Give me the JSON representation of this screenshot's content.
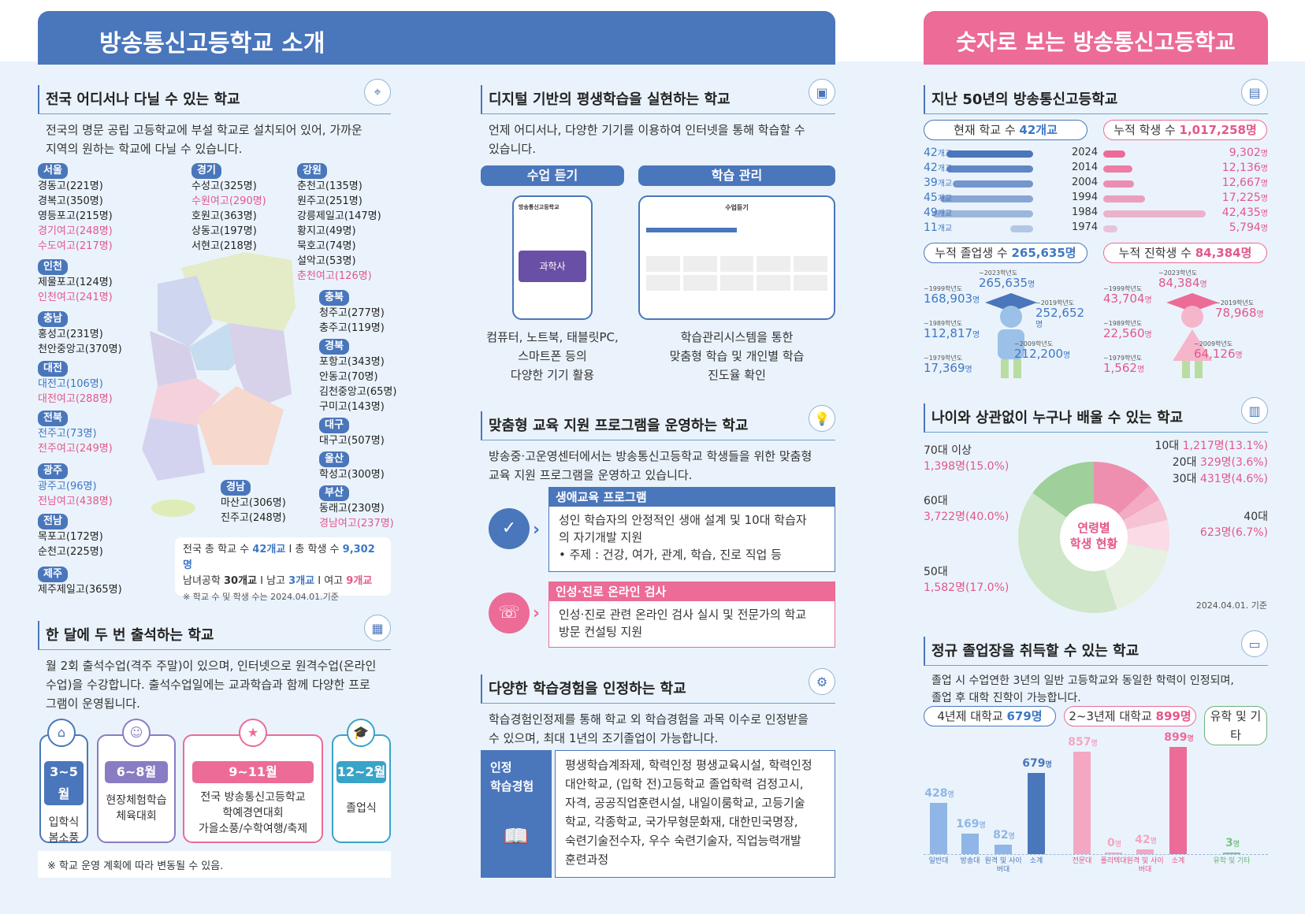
{
  "header": {
    "left_title": "방송통신고등학교 소개",
    "right_title": "숫자로 보는 방송통신고등학교"
  },
  "s1": {
    "title": "전국 어디서나 다닐 수 있는 학교",
    "desc1": "전국의 명문 공립 고등학교에 부설 학교로 설치되어 있어, 가까운",
    "desc2": "지역의 원하는 학교에 다닐 수 있습니다.",
    "regions": {
      "seoul": {
        "tag": "서울",
        "items": [
          "경동고(221명)",
          "경복고(350명)",
          "영등포고(215명)",
          "경기여고(248명)",
          "수도여고(217명)"
        ]
      },
      "incheon": {
        "tag": "인천",
        "items": [
          "제물포고(124명)",
          "인천여고(241명)"
        ]
      },
      "chungnam": {
        "tag": "충남",
        "items": [
          "홍성고(231명)",
          "천안중앙고(370명)"
        ]
      },
      "daejeon": {
        "tag": "대전",
        "items": [
          "대전고(106명)",
          "대전여고(288명)"
        ]
      },
      "jeonbuk": {
        "tag": "전북",
        "items": [
          "전주고(73명)",
          "전주여고(249명)"
        ]
      },
      "gwangju": {
        "tag": "광주",
        "items": [
          "광주고(96명)",
          "전남여고(438명)"
        ]
      },
      "jeonnam": {
        "tag": "전남",
        "items": [
          "목포고(172명)",
          "순천고(225명)"
        ]
      },
      "jeju": {
        "tag": "제주",
        "items": [
          "제주제일고(365명)"
        ]
      },
      "gyeonggi": {
        "tag": "경기",
        "items": [
          "수성고(325명)",
          "수원여고(290명)",
          "호원고(363명)",
          "상동고(197명)",
          "서현고(218명)"
        ]
      },
      "gangwon": {
        "tag": "강원",
        "items": [
          "춘천고(135명)",
          "원주고(251명)",
          "강릉제일고(147명)",
          "황지고(49명)",
          "묵호고(74명)",
          "설악고(53명)",
          "춘천여고(126명)"
        ]
      },
      "chungbuk": {
        "tag": "충북",
        "items": [
          "청주고(277명)",
          "충주고(119명)"
        ]
      },
      "gyeongbuk": {
        "tag": "경북",
        "items": [
          "포항고(343명)",
          "안동고(70명)",
          "김천중앙고(65명)",
          "구미고(143명)"
        ]
      },
      "daegu": {
        "tag": "대구",
        "items": [
          "대구고(507명)"
        ]
      },
      "ulsan": {
        "tag": "울산",
        "items": [
          "학성고(300명)"
        ]
      },
      "gyeongnam": {
        "tag": "경남",
        "items": [
          "마산고(306명)",
          "진주고(248명)"
        ]
      },
      "busan": {
        "tag": "부산",
        "items": [
          "동래고(230명)",
          "경남여고(237명)"
        ]
      }
    },
    "summary1a": "전국 총 학교 수 ",
    "summary1b": "42개교",
    "summary1c": " I 총 학생 수 ",
    "summary1d": "9,302명",
    "summary2a": "남녀공학 ",
    "summary2b": "30개교",
    "summary2c": " I 남고 ",
    "summary2d": "3개교",
    "summary2e": " I 여고 ",
    "summary2f": "9개교",
    "summary3": "※ 학교 수 및 학생 수는 2024.04.01.기준"
  },
  "s2": {
    "title": "한 달에 두 번 출석하는 학교",
    "desc1": "월 2회 출석수업(격주 주말)이 있으며, 인터넷으로 원격수업(온라인",
    "desc2": "수업)을 수강합니다. 출석수업일에는 교과학습과 함께 다양한 프로",
    "desc3": "그램이 운영됩니다.",
    "cards": [
      {
        "period": "3~5월",
        "l1": "입학식",
        "l2": "봄소풍",
        "l3": ""
      },
      {
        "period": "6~8월",
        "l1": "현장체험학습",
        "l2": "체육대회",
        "l3": ""
      },
      {
        "period": "9~11월",
        "l1": "전국 방송통신고등학교",
        "l2": "학예경연대회",
        "l3": "가을소풍/수학여행/축제"
      },
      {
        "period": "12~2월",
        "l1": "졸업식",
        "l2": "",
        "l3": ""
      }
    ],
    "note": "※ 학교 운영 계획에 따라 변동될 수 있음."
  },
  "s3": {
    "title": "디지털 기반의 평생학습을 실현하는 학교",
    "desc1": "언제 어디서나, 다양한 기기를 이용하여 인터넷을 통해 학습할 수",
    "desc2": "있습니다.",
    "btn1": "수업 듣기",
    "btn2": "학습 관리",
    "phone_title": "방송통신고등학교",
    "phone_sub": "과학사",
    "lms_title": "수업듣기",
    "cap1": [
      "컴퓨터, 노트북, 태블릿PC,",
      "스마트폰 등의",
      "다양한 기기 활용"
    ],
    "cap2": [
      "학습관리시스템을 통한",
      "맞춤형 학습 및 개인별 학습",
      "진도율 확인"
    ]
  },
  "s4": {
    "title": "맞춤형 교육 지원 프로그램을 운영하는 학교",
    "desc1": "방송중·고운영센터에서는 방송통신고등학교 학생들을 위한 맞춤형",
    "desc2": "교육 지원 프로그램을 운영하고 있습니다.",
    "p1": {
      "title": "생애교육 프로그램",
      "l1": "성인 학습자의 안정적인 생애 설계 및 10대 학습자",
      "l2": "의 자기개발 지원",
      "l3": "• 주제 : 건강, 여가, 관계, 학습, 진로 직업 등"
    },
    "p2": {
      "title": "인성·진로 온라인 검사",
      "l1": "인성·진로 관련 온라인 검사 실시 및 전문가의 학교",
      "l2": "방문 컨설팅 지원"
    }
  },
  "s5": {
    "title": "다양한 학습경험을 인정하는 학교",
    "desc1": "학습경험인정제를 통해 학교 외 학습경험을 과목 이수로 인정받을",
    "desc2": "수 있으며, 최대 1년의 조기졸업이 가능합니다.",
    "side1": "인정",
    "side2": "학습경험",
    "lines": [
      "평생학습계좌제, 학력인정 평생교육시설, 학력인정",
      "대안학교, (입학 전)고등학교 졸업학력 검정고시,",
      "자격, 공공직업훈련시설, 내일이룸학교, 고등기술",
      "학교, 각종학교, 국가무형문화재, 대한민국명장,",
      "숙련기술전수자, 우수 숙련기술자, 직업능력개발",
      "훈련과정"
    ]
  },
  "s6": {
    "title": "지난 50년의 방송통신고등학교",
    "pill1a": "현재 학교 수 ",
    "pill1b": "42개교",
    "pill2a": "누적 학생 수 ",
    "pill2b": "1,017,258명",
    "unit_school": "개교",
    "unit_person": "명",
    "rows": [
      {
        "schools": 42,
        "year": "2024",
        "students": "9,302"
      },
      {
        "schools": 42,
        "year": "2014",
        "students": "12,136"
      },
      {
        "schools": 39,
        "year": "2004",
        "students": "12,667"
      },
      {
        "schools": 45,
        "year": "1994",
        "students": "17,225"
      },
      {
        "schools": 49,
        "year": "1984",
        "students": "42,435"
      },
      {
        "schools": 11,
        "year": "1974",
        "students": "5,794"
      }
    ],
    "pill3a": "누적 졸업생 수 ",
    "pill3b": "265,635명",
    "pill4a": "누적 진학생 수 ",
    "pill4b": "84,384명",
    "grad": [
      {
        "y": "~1999학년도",
        "v": "168,903"
      },
      {
        "y": "~2023학년도",
        "v": "265,635"
      },
      {
        "y": "~2019학년도",
        "v": "252,652"
      },
      {
        "y": "~1989학년도",
        "v": "112,817"
      },
      {
        "y": "~2009학년도",
        "v": "212,200"
      },
      {
        "y": "~1979학년도",
        "v": "17,369"
      }
    ],
    "adv": [
      {
        "y": "~1999학년도",
        "v": "43,704"
      },
      {
        "y": "~2023학년도",
        "v": "84,384"
      },
      {
        "y": "~2019학년도",
        "v": "78,968"
      },
      {
        "y": "~1989학년도",
        "v": "22,560"
      },
      {
        "y": "~2009학년도",
        "v": "64,126"
      },
      {
        "y": "~1979학년도",
        "v": "1,562"
      }
    ]
  },
  "s7": {
    "title": "나이와 상관없이 누구나 배울 수 있는 학교",
    "center1": "연령별",
    "center2": "학생 현황",
    "basis": "2024.04.01. 기준",
    "labels": [
      {
        "age": "10대",
        "val": "1,217명(13.1%)"
      },
      {
        "age": "20대",
        "val": "329명(3.6%)"
      },
      {
        "age": "30대",
        "val": "431명(4.6%)"
      },
      {
        "age": "40대",
        "val": "623명(6.7%)"
      },
      {
        "age": "50대",
        "val": "1,582명(17.0%)"
      },
      {
        "age": "60대",
        "val": "3,722명(40.0%)"
      },
      {
        "age": "70대 이상",
        "val": "1,398명(15.0%)"
      }
    ]
  },
  "s8": {
    "title": "정규 졸업장을 취득할 수 있는 학교",
    "desc1": "졸업 시 수업연한 3년의 일반 고등학교와 동일한 학력이 인정되며,",
    "desc2": "졸업 후 대학 진학이 가능합니다.",
    "pill1a": "4년제 대학교 ",
    "pill1b": "679명",
    "pill2a": "2~3년제 대학교 ",
    "pill2b": "899명",
    "pill3": "유학 및 기타",
    "bars": [
      {
        "label": "일반대",
        "v": "428",
        "n": 428
      },
      {
        "label": "방송대",
        "v": "169",
        "n": 169
      },
      {
        "label": "원격 및 사이버대",
        "v": "82",
        "n": 82
      },
      {
        "label": "소계",
        "v": "679",
        "n": 679
      },
      {
        "label": "전문대",
        "v": "857",
        "n": 857
      },
      {
        "label": "폴리텍대",
        "v": "0",
        "n": 0
      },
      {
        "label": "원격 및 사이버대",
        "v": "42",
        "n": 42
      },
      {
        "label": "소계",
        "v": "899",
        "n": 899
      },
      {
        "label": "유학 및 기타",
        "v": "3",
        "n": 3
      }
    ]
  },
  "colors": {
    "blue": "#4a76bb",
    "pink": "#ec6b97",
    "green": "#6bb37a",
    "purple": "#8a7cc2",
    "teal": "#3aa3c8"
  }
}
